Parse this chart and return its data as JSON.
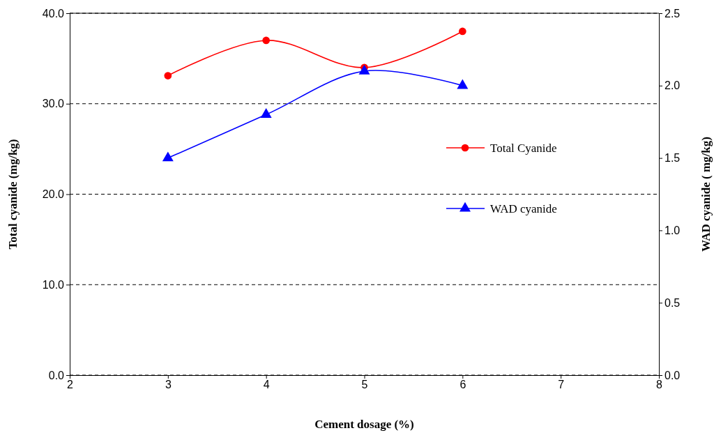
{
  "chart_data": {
    "type": "line",
    "xlabel": "Cement dosage (%)",
    "ylabel": "Total cyanide (mg/kg)",
    "y2label": "WAD cyanide ( mg/kg)",
    "x": [
      3,
      4,
      5,
      6
    ],
    "series": [
      {
        "name": "Total Cyanide",
        "color": "#ff0000",
        "marker": "circle",
        "values": [
          33.1,
          37.0,
          34.0,
          38.0
        ]
      },
      {
        "name": "WAD cyanide",
        "color": "#0000ff",
        "marker": "triangle",
        "axis": "y2",
        "values": [
          1.5,
          1.8,
          2.1,
          2.0
        ]
      }
    ],
    "xlim": [
      2,
      8
    ],
    "xticks": [
      2,
      3,
      4,
      5,
      6,
      7,
      8
    ],
    "ylim": [
      0,
      40
    ],
    "yticks": [
      {
        "value": 0,
        "label": "0.0"
      },
      {
        "value": 10,
        "label": "10.0"
      },
      {
        "value": 20,
        "label": "20.0"
      },
      {
        "value": 30,
        "label": "30.0"
      },
      {
        "value": 40,
        "label": "40.0"
      }
    ],
    "y2lim": [
      0,
      2.5
    ],
    "y2ticks": [
      {
        "value": 0,
        "label": "0.0"
      },
      {
        "value": 0.5,
        "label": "0.5"
      },
      {
        "value": 1,
        "label": "1.0"
      },
      {
        "value": 1.5,
        "label": "1.5"
      },
      {
        "value": 2,
        "label": "2.0"
      },
      {
        "value": 2.5,
        "label": "2.5"
      }
    ],
    "grid": "y",
    "legend": "right",
    "line_style": "solid"
  }
}
